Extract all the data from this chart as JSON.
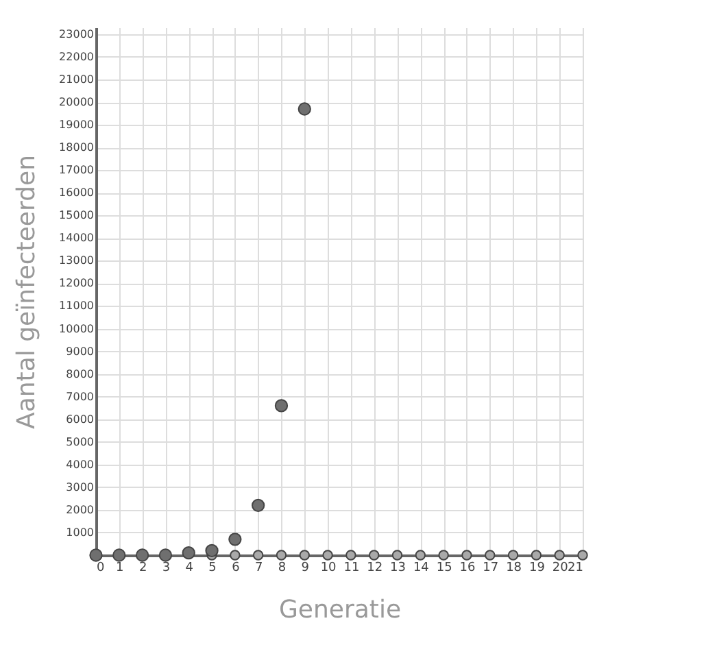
{
  "chart_data": {
    "type": "scatter",
    "xlabel": "Generatie",
    "ylabel": "Aantal geïnfecteerden",
    "xlim": [
      0,
      21
    ],
    "xticks": [
      0,
      1,
      2,
      3,
      4,
      5,
      6,
      7,
      8,
      9,
      10,
      11,
      12,
      13,
      14,
      15,
      16,
      17,
      18,
      19,
      20,
      21
    ],
    "ylim": [
      0,
      23300
    ],
    "yticks": [
      1000,
      2000,
      3000,
      4000,
      5000,
      6000,
      7000,
      8000,
      9000,
      10000,
      11000,
      12000,
      13000,
      14000,
      15000,
      16000,
      17000,
      18000,
      19000,
      20000,
      21000,
      22000,
      23000
    ],
    "grid": true,
    "marker": "circle",
    "series": [
      {
        "color": "#a9a9a9",
        "x": [
          5,
          6,
          7,
          8,
          9,
          10,
          11,
          12,
          13,
          14,
          15,
          16,
          17,
          18,
          19,
          20,
          21
        ],
        "values": [
          0,
          0,
          0,
          0,
          0,
          0,
          0,
          0,
          0,
          0,
          0,
          0,
          0,
          0,
          0,
          0,
          0
        ]
      },
      {
        "color": "#6f6f6f",
        "x": [
          0,
          1,
          2,
          3,
          4,
          5,
          6,
          7,
          8,
          9
        ],
        "values": [
          0,
          0,
          0,
          0,
          100,
          200,
          700,
          2200,
          6600,
          19700
        ]
      }
    ]
  }
}
